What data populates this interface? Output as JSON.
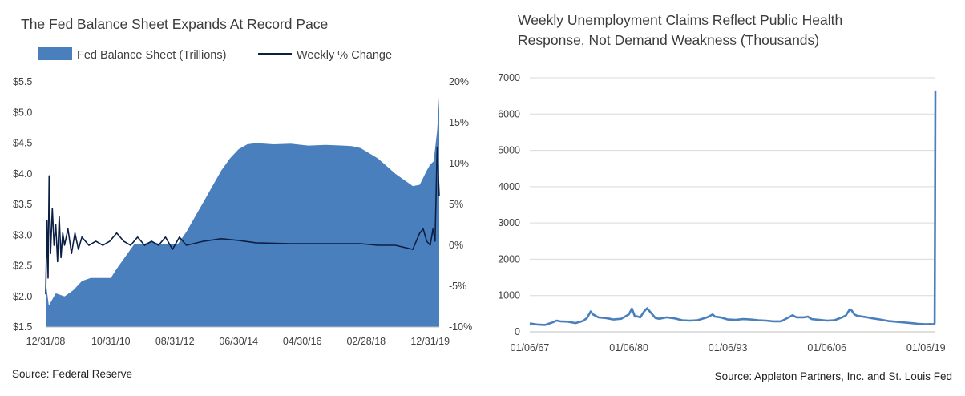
{
  "left_chart": {
    "title": "The Fed Balance Sheet Expands At Record Pace",
    "source": "Source: Federal Reserve",
    "colors": {
      "area": "#4a7fbe",
      "line": "#0b1f45"
    }
  },
  "right_chart": {
    "title_line1": "Weekly Unemployment Claims Reflect Public Health",
    "title_line2": "Response, Not Demand Weakness (Thousands)",
    "source": "Source: Appleton Partners, Inc. and St. Louis Fed",
    "colors": {
      "line": "#4a7fbe"
    }
  },
  "chart_data": [
    {
      "type": "area",
      "title": "The Fed Balance Sheet Expands At Record Pace",
      "legend_position": "top",
      "x_tick_labels": [
        "12/31/08",
        "10/31/10",
        "08/31/12",
        "06/30/14",
        "04/30/16",
        "02/28/18",
        "12/31/19"
      ],
      "y_left_tick_labels": [
        "$5.5",
        "$5.0",
        "$4.5",
        "$4.0",
        "$3.5",
        "$3.0",
        "$2.5",
        "$2.0",
        "$1.5"
      ],
      "y_right_tick_labels": [
        "20%",
        "15%",
        "10%",
        "5%",
        "0%",
        "-5%",
        "-10%"
      ],
      "ylim_left": [
        1.5,
        5.5
      ],
      "ylim_right": [
        -10,
        20
      ],
      "series": [
        {
          "name": "Fed Balance Sheet (Trillions)",
          "axis": "left",
          "type": "area",
          "x": [
            2008.96,
            2009.05,
            2009.25,
            2009.5,
            2009.75,
            2010.0,
            2010.25,
            2010.5,
            2010.75,
            2010.83,
            2011.0,
            2011.25,
            2011.5,
            2011.75,
            2012.0,
            2012.25,
            2012.5,
            2012.75,
            2013.0,
            2013.25,
            2013.5,
            2013.75,
            2014.0,
            2014.25,
            2014.5,
            2014.75,
            2015.0,
            2015.5,
            2016.0,
            2016.5,
            2017.0,
            2017.5,
            2017.75,
            2018.0,
            2018.5,
            2019.0,
            2019.5,
            2019.7,
            2019.9,
            2020.0,
            2020.1,
            2020.2,
            2020.26
          ],
          "values": [
            2.25,
            1.85,
            2.05,
            2.0,
            2.1,
            2.25,
            2.3,
            2.3,
            2.3,
            2.3,
            2.45,
            2.65,
            2.85,
            2.85,
            2.9,
            2.85,
            2.85,
            2.85,
            3.05,
            3.3,
            3.55,
            3.8,
            4.05,
            4.25,
            4.4,
            4.48,
            4.5,
            4.48,
            4.49,
            4.46,
            4.47,
            4.46,
            4.45,
            4.42,
            4.25,
            4.0,
            3.8,
            3.82,
            4.05,
            4.15,
            4.2,
            4.7,
            5.25
          ]
        },
        {
          "name": "Weekly % Change",
          "axis": "right",
          "type": "line",
          "x": [
            2008.96,
            2009.0,
            2009.03,
            2009.06,
            2009.1,
            2009.15,
            2009.2,
            2009.25,
            2009.3,
            2009.35,
            2009.4,
            2009.45,
            2009.5,
            2009.6,
            2009.7,
            2009.8,
            2009.9,
            2010.0,
            2010.2,
            2010.4,
            2010.6,
            2010.8,
            2011.0,
            2011.2,
            2011.4,
            2011.6,
            2011.8,
            2012.0,
            2012.2,
            2012.4,
            2012.6,
            2012.8,
            2013.0,
            2013.5,
            2014.0,
            2014.5,
            2015.0,
            2016.0,
            2017.0,
            2018.0,
            2018.5,
            2019.0,
            2019.5,
            2019.7,
            2019.8,
            2019.9,
            2020.0,
            2020.08,
            2020.14,
            2020.2,
            2020.26
          ],
          "values": [
            -6.0,
            3.0,
            -4.0,
            8.5,
            -1.0,
            4.5,
            0.0,
            2.5,
            -2.0,
            3.5,
            -1.5,
            1.5,
            0.0,
            2.0,
            -1.0,
            1.5,
            -0.5,
            1.0,
            0.0,
            0.5,
            0.0,
            0.5,
            1.5,
            0.5,
            0.0,
            1.0,
            0.0,
            0.5,
            0.0,
            1.0,
            -0.5,
            1.0,
            0.0,
            0.5,
            0.8,
            0.6,
            0.3,
            0.2,
            0.2,
            0.2,
            0.0,
            0.0,
            -0.5,
            1.5,
            2.0,
            0.5,
            0.0,
            2.0,
            0.5,
            12.0,
            6.0
          ]
        }
      ]
    },
    {
      "type": "line",
      "title": "Weekly Unemployment Claims Reflect Public Health Response, Not Demand Weakness (Thousands)",
      "x_tick_labels": [
        "01/06/67",
        "01/06/80",
        "01/06/93",
        "01/06/06",
        "01/06/19"
      ],
      "y_tick_labels": [
        "7000",
        "6000",
        "5000",
        "4000",
        "3000",
        "2000",
        "1000",
        "0"
      ],
      "ylim": [
        0,
        7000
      ],
      "series": [
        {
          "x": [
            1967.0,
            1968.0,
            1969.0,
            1970.0,
            1970.5,
            1971.0,
            1972.0,
            1973.0,
            1974.0,
            1974.5,
            1975.0,
            1975.3,
            1976.0,
            1977.0,
            1978.0,
            1979.0,
            1979.5,
            1980.0,
            1980.4,
            1980.8,
            1981.0,
            1981.5,
            1982.0,
            1982.4,
            1982.8,
            1983.5,
            1984.0,
            1985.0,
            1986.0,
            1987.0,
            1988.0,
            1989.0,
            1990.0,
            1990.5,
            1991.0,
            1991.3,
            1992.0,
            1993.0,
            1994.0,
            1995.0,
            1996.0,
            1997.0,
            1998.0,
            1999.0,
            2000.0,
            2001.0,
            2001.5,
            2002.0,
            2003.0,
            2003.5,
            2004.0,
            2005.0,
            2006.0,
            2007.0,
            2008.0,
            2008.5,
            2009.0,
            2009.2,
            2009.6,
            2010.0,
            2011.0,
            2012.0,
            2013.0,
            2014.0,
            2015.0,
            2016.0,
            2017.0,
            2018.0,
            2019.0,
            2019.5,
            2020.0,
            2020.15,
            2020.2,
            2020.24
          ],
          "values": [
            230,
            200,
            190,
            260,
            310,
            290,
            280,
            240,
            300,
            380,
            560,
            480,
            400,
            380,
            340,
            360,
            420,
            480,
            640,
            420,
            430,
            400,
            560,
            650,
            550,
            380,
            360,
            400,
            370,
            320,
            310,
            320,
            380,
            420,
            480,
            420,
            400,
            340,
            330,
            350,
            340,
            320,
            310,
            290,
            290,
            400,
            460,
            400,
            400,
            420,
            350,
            330,
            310,
            320,
            400,
            450,
            620,
            600,
            480,
            440,
            410,
            370,
            340,
            300,
            280,
            260,
            240,
            220,
            210,
            215,
            210,
            230,
            3300,
            6650
          ]
        }
      ]
    }
  ]
}
